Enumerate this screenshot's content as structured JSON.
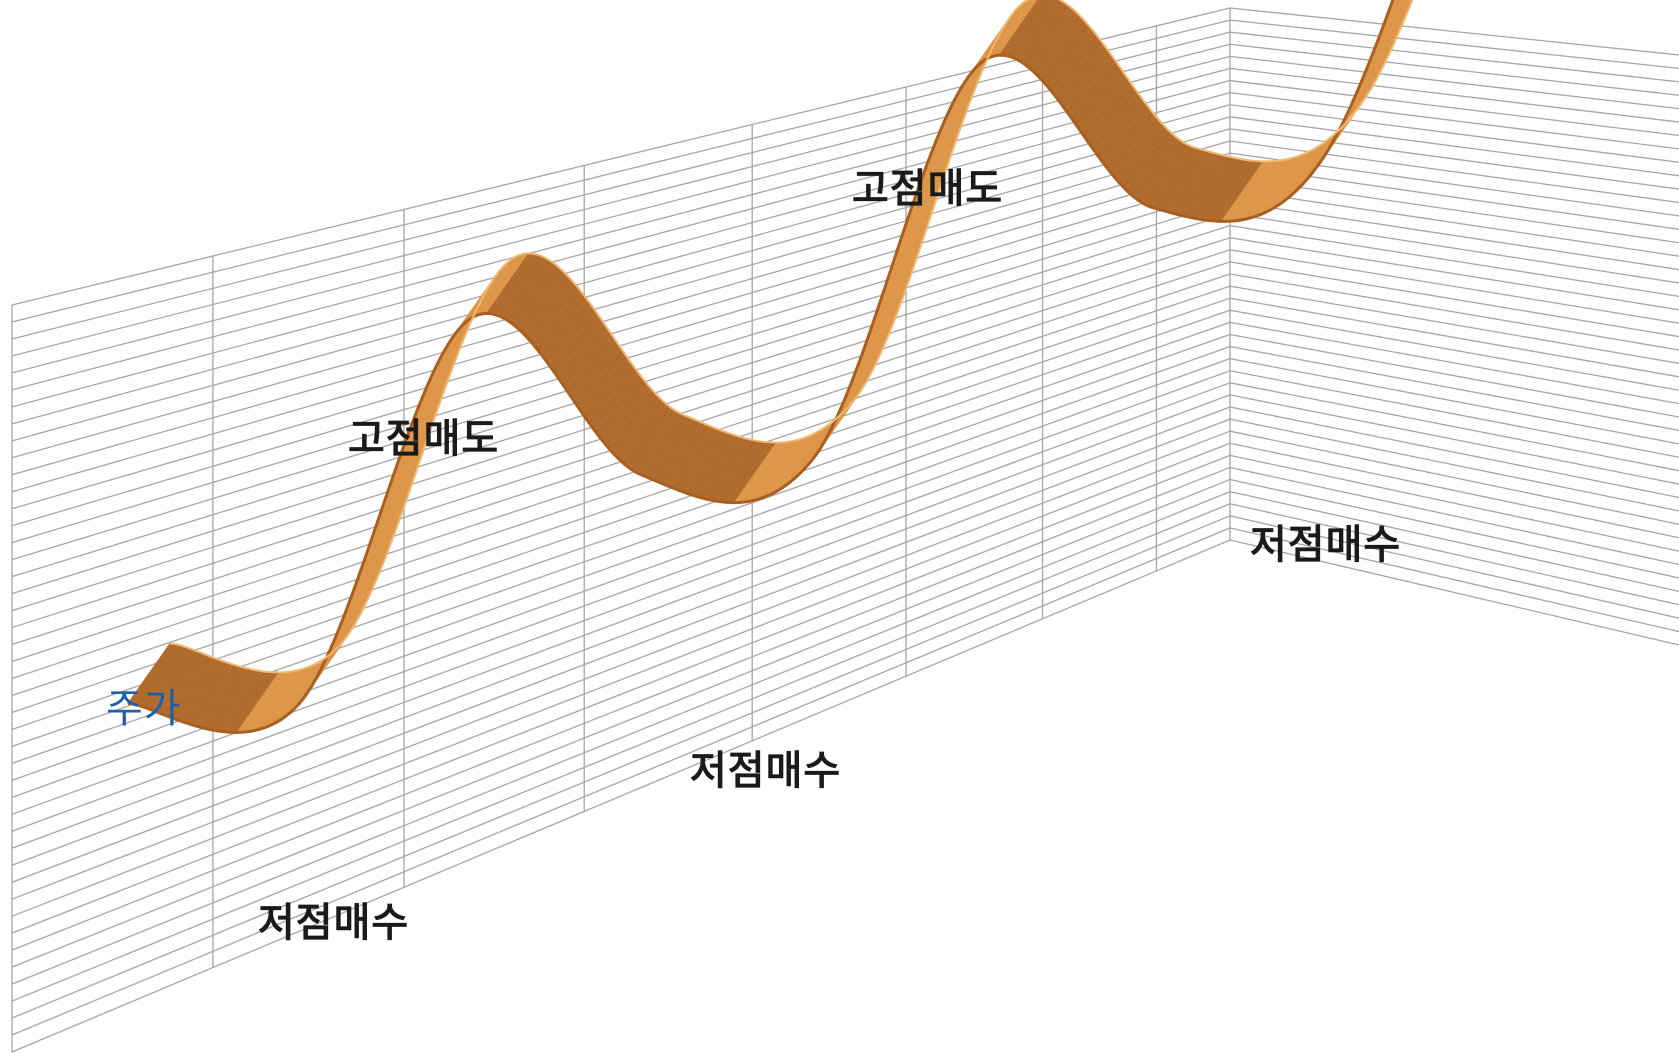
{
  "chart_data": {
    "type": "area",
    "series": [
      {
        "name": "주가",
        "values": [
          0.12,
          0.05,
          0.8,
          0.4,
          0.36,
          1.14,
          0.76,
          0.8,
          1.72
        ]
      }
    ],
    "annotations": [
      {
        "text": "저점매수",
        "point": 1
      },
      {
        "text": "고점매도",
        "point": 2
      },
      {
        "text": "저점매수",
        "point": 4
      },
      {
        "text": "고점매도",
        "point": 5
      },
      {
        "text": "저점매수",
        "point": 7
      }
    ],
    "grid": true,
    "colors": {
      "ribbon": "#dd9548",
      "ribbon_dark": "#b0692a",
      "grid": "#a6a6a6",
      "series_label": "#1f5fa8"
    }
  }
}
